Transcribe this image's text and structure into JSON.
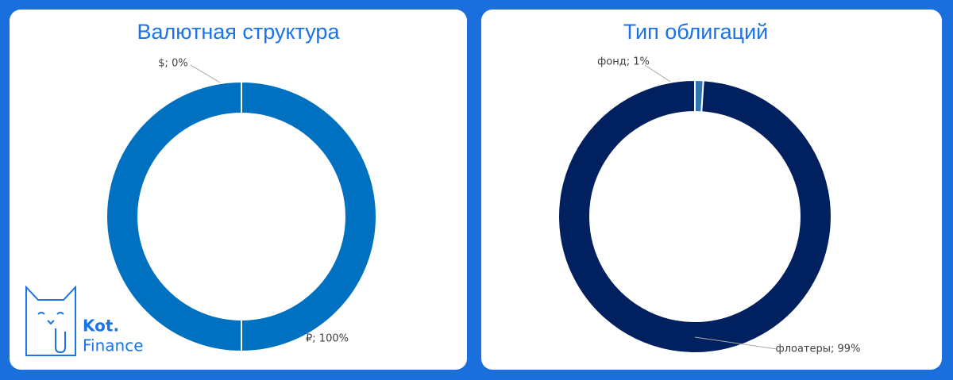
{
  "chart_data": [
    {
      "type": "donut",
      "title": "Валютная структура",
      "values": [
        0,
        100
      ],
      "value_labels": [
        "$; 0%",
        "₽; 100%"
      ],
      "colors": [
        "#0070c0",
        "#0070c0"
      ]
    },
    {
      "type": "donut",
      "title": "Тип облигаций",
      "values": [
        1,
        99
      ],
      "value_labels": [
        "фонд; 1%",
        "флоатеры; 99%"
      ],
      "colors": [
        "#2e75b6",
        "#002060"
      ]
    }
  ],
  "logo": {
    "line1": "Kot.",
    "line2": "Finance"
  }
}
